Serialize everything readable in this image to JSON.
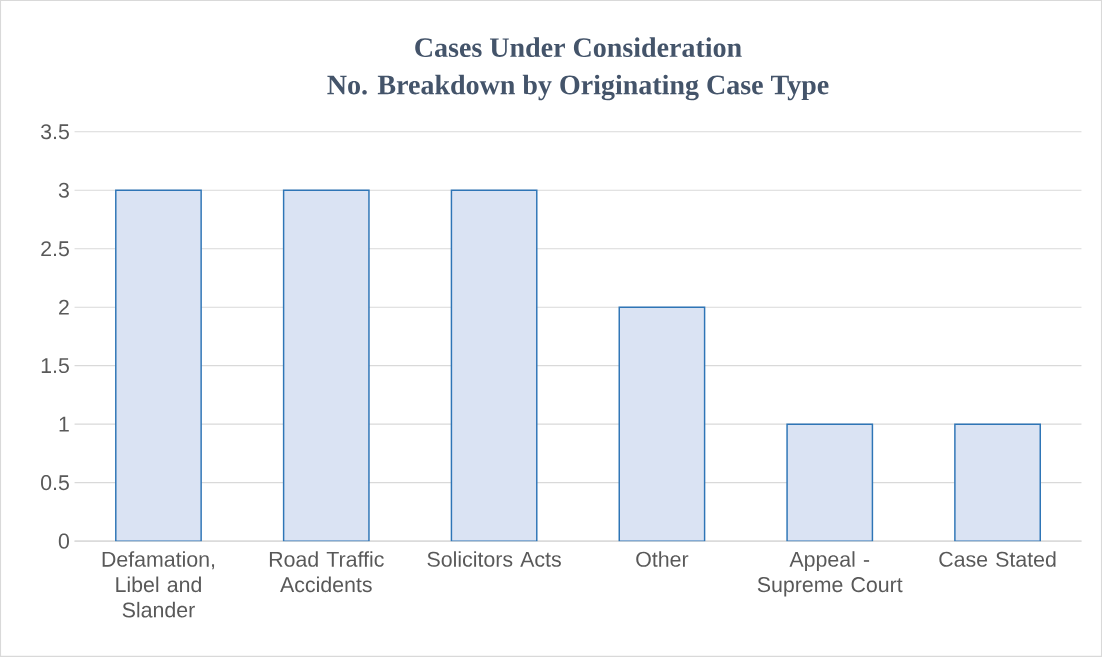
{
  "chart_data": {
    "type": "bar",
    "title": "Cases Under Consideration",
    "subtitle": "No. Breakdown by Originating Case Type",
    "categories": [
      "Defamation, Libel and Slander",
      "Road Traffic Accidents",
      "Solicitors Acts",
      "Other",
      "Appeal - Supreme Court",
      "Case Stated"
    ],
    "values": [
      3,
      3,
      3,
      2,
      1,
      1
    ],
    "color": "#dae3f3",
    "ylim": [
      0,
      3.5
    ],
    "yticks": [
      0,
      0.5,
      1,
      1.5,
      2,
      2.5,
      3,
      3.5
    ],
    "grid": "y"
  }
}
